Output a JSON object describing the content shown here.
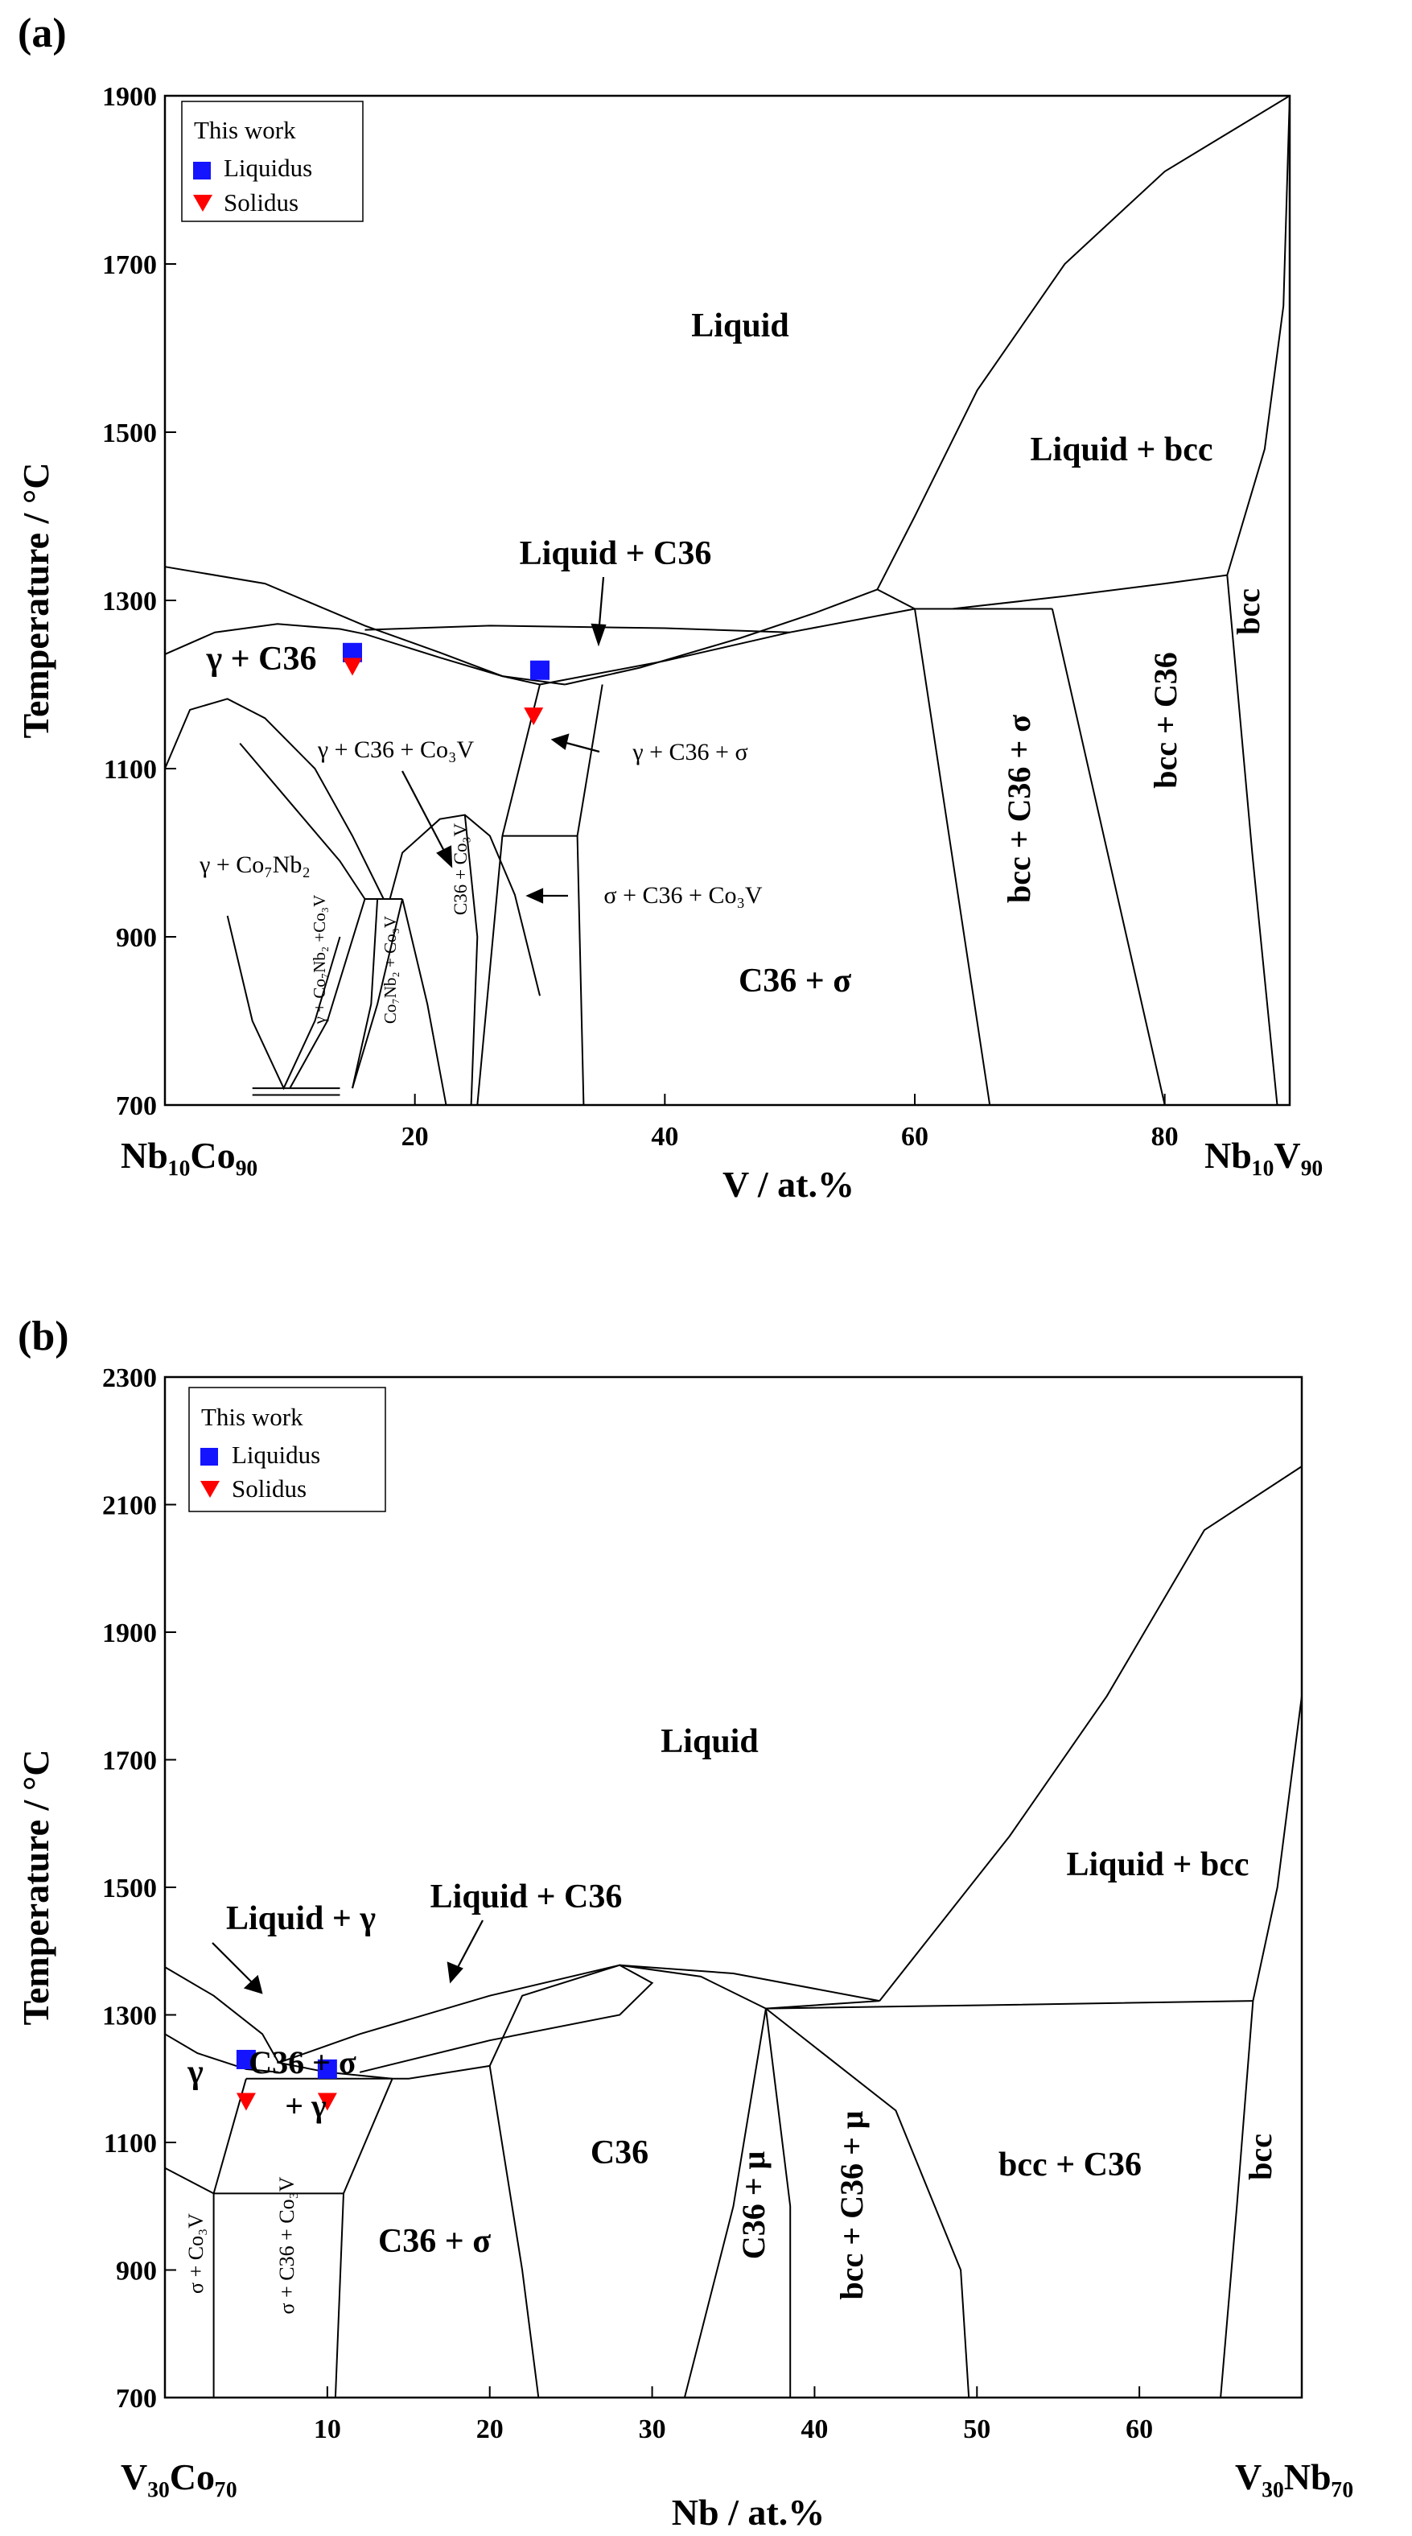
{
  "chart_data": [
    {
      "type": "phase-diagram",
      "panel_label": "(a)",
      "ylabel": "Temperature / °C",
      "xlabel": "V / at.%",
      "x_left_label": "Nb₁₀Co₉₀",
      "x_right_label": "Nb₁₀V₉₀",
      "xlim": [
        0,
        90
      ],
      "ylim": [
        700,
        1900
      ],
      "x_ticks": [
        20,
        40,
        60,
        80
      ],
      "y_ticks": [
        700,
        900,
        1100,
        1300,
        1500,
        1700,
        1900
      ],
      "legend": {
        "title": "This work",
        "entries": [
          {
            "label": "Liquidus",
            "marker": "square",
            "color": "#1414ff"
          },
          {
            "label": "Solidus",
            "marker": "triangle-down",
            "color": "#ff0000"
          }
        ]
      },
      "liquidus_points": [
        [
          15,
          1238
        ],
        [
          30,
          1217
        ]
      ],
      "solidus_points": [
        [
          15,
          1222
        ],
        [
          29.5,
          1163
        ]
      ],
      "region_labels": [
        "Liquid",
        "Liquid + bcc",
        "Liquid + C36",
        "γ + C36",
        "γ + C36 + Co₃V",
        "γ + C36 + σ",
        "γ + Co₇Nb₂",
        "σ + C36 + Co₃V",
        "C36 + σ",
        "bcc + C36 + σ",
        "bcc + C36",
        "bcc",
        "γ + Co₇Nb₂ +Co₃V",
        "Co₇Nb₂ + Co₃V",
        "C36 + Co₃V"
      ],
      "boundaries": [
        [
          [
            0,
            1340
          ],
          [
            8,
            1320
          ],
          [
            16,
            1270
          ],
          [
            22,
            1238
          ],
          [
            27,
            1210
          ],
          [
            32,
            1200
          ]
        ],
        [
          [
            0,
            1236
          ],
          [
            4,
            1262
          ],
          [
            9,
            1272
          ],
          [
            14,
            1266
          ],
          [
            16,
            1260
          ],
          [
            22,
            1232
          ],
          [
            27,
            1210
          ],
          [
            30,
            1200
          ]
        ],
        [
          [
            16,
            1265
          ],
          [
            26,
            1270
          ],
          [
            40,
            1267
          ],
          [
            50,
            1262
          ]
        ],
        [
          [
            32,
            1200
          ],
          [
            38,
            1220
          ],
          [
            46,
            1255
          ],
          [
            52,
            1285
          ],
          [
            57,
            1313
          ]
        ],
        [
          [
            30,
            1200
          ],
          [
            40,
            1228
          ],
          [
            50,
            1262
          ],
          [
            60,
            1290
          ]
        ],
        [
          [
            57,
            1313
          ],
          [
            60,
            1290
          ]
        ],
        [
          [
            57,
            1313
          ],
          [
            60,
            1400
          ],
          [
            65,
            1550
          ],
          [
            72,
            1700
          ],
          [
            80,
            1810
          ],
          [
            90,
            1900
          ]
        ],
        [
          [
            60,
            1290
          ],
          [
            63,
            1290
          ],
          [
            71,
            1290
          ]
        ],
        [
          [
            63,
            1290
          ],
          [
            72,
            1305
          ],
          [
            80,
            1320
          ],
          [
            85,
            1330
          ]
        ],
        [
          [
            85,
            1330
          ],
          [
            88,
            1480
          ],
          [
            89.5,
            1650
          ],
          [
            90,
            1900
          ]
        ],
        [
          [
            60,
            1290
          ],
          [
            66,
            700
          ]
        ],
        [
          [
            71,
            1290
          ],
          [
            80,
            700
          ]
        ],
        [
          [
            85,
            1330
          ],
          [
            87,
            1000
          ],
          [
            89,
            700
          ]
        ],
        [
          [
            0,
            1100
          ],
          [
            2,
            1170
          ],
          [
            5,
            1183
          ],
          [
            8,
            1160
          ],
          [
            12,
            1100
          ],
          [
            15,
            1020
          ],
          [
            17.5,
            945
          ]
        ],
        [
          [
            6,
            1130
          ],
          [
            10,
            1060
          ],
          [
            14,
            990
          ],
          [
            16,
            945
          ]
        ],
        [
          [
            16,
            945
          ],
          [
            19,
            945
          ]
        ],
        [
          [
            16,
            945
          ],
          [
            13,
            800
          ],
          [
            10,
            720
          ]
        ],
        [
          [
            19,
            945
          ],
          [
            17,
            820
          ],
          [
            15,
            720
          ]
        ],
        [
          [
            17,
            945
          ],
          [
            16.5,
            820
          ],
          [
            15,
            720
          ]
        ],
        [
          [
            18,
            945
          ],
          [
            19,
            1000
          ],
          [
            22,
            1040
          ],
          [
            24,
            1045
          ],
          [
            26,
            1020
          ],
          [
            28,
            950
          ],
          [
            30,
            830
          ]
        ],
        [
          [
            24,
            1045
          ],
          [
            25,
            900
          ],
          [
            24.5,
            700
          ]
        ],
        [
          [
            19,
            945
          ],
          [
            21,
            820
          ],
          [
            22.5,
            700
          ]
        ],
        [
          [
            5,
            925
          ],
          [
            7,
            800
          ],
          [
            9.5,
            720
          ],
          [
            12,
            800
          ],
          [
            14,
            900
          ]
        ],
        [
          [
            7,
            720
          ],
          [
            14,
            720
          ]
        ],
        [
          [
            7,
            712
          ],
          [
            14,
            712
          ]
        ],
        [
          [
            30,
            1200
          ],
          [
            27,
            1020
          ]
        ],
        [
          [
            35,
            1200
          ],
          [
            33,
            1020
          ]
        ],
        [
          [
            27,
            1020
          ],
          [
            33,
            1020
          ]
        ],
        [
          [
            27,
            1020
          ],
          [
            25,
            700
          ]
        ],
        [
          [
            33,
            1020
          ],
          [
            33.5,
            700
          ]
        ]
      ]
    },
    {
      "type": "phase-diagram",
      "panel_label": "(b)",
      "ylabel": "Temperature / °C",
      "xlabel": "Nb / at.%",
      "x_left_label": "V₃₀Co₇₀",
      "x_right_label": "V₃₀Nb₇₀",
      "xlim": [
        0,
        70
      ],
      "ylim": [
        700,
        2300
      ],
      "x_ticks": [
        10,
        20,
        30,
        40,
        50,
        60
      ],
      "y_ticks": [
        700,
        900,
        1100,
        1300,
        1500,
        1700,
        1900,
        2100,
        2300
      ],
      "legend": {
        "title": "This work",
        "entries": [
          {
            "label": "Liquidus",
            "marker": "square",
            "color": "#1414ff"
          },
          {
            "label": "Solidus",
            "marker": "triangle-down",
            "color": "#ff0000"
          }
        ]
      },
      "liquidus_points": [
        [
          5,
          1230
        ],
        [
          10,
          1215
        ]
      ],
      "solidus_points": [
        [
          5,
          1165
        ],
        [
          10,
          1165
        ]
      ],
      "region_labels": [
        "Liquid",
        "Liquid + bcc",
        "Liquid + γ",
        "Liquid + C36",
        "γ",
        "C36 + σ + γ",
        "C36",
        "C36 + σ",
        "σ + Co₃V",
        "σ + C36 + Co₃V",
        "C36 + μ",
        "bcc + C36 + μ",
        "bcc + C36",
        "bcc"
      ],
      "boundaries": [
        [
          [
            0,
            1375
          ],
          [
            3,
            1330
          ],
          [
            6,
            1270
          ],
          [
            7,
            1225
          ]
        ],
        [
          [
            0,
            1270
          ],
          [
            2,
            1240
          ],
          [
            5,
            1215
          ],
          [
            7,
            1210
          ]
        ],
        [
          [
            7,
            1225
          ],
          [
            10,
            1210
          ],
          [
            14,
            1200
          ]
        ],
        [
          [
            7,
            1225
          ],
          [
            12,
            1270
          ],
          [
            20,
            1330
          ],
          [
            28,
            1378
          ],
          [
            35,
            1365
          ],
          [
            44,
            1322
          ]
        ],
        [
          [
            12,
            1210
          ],
          [
            20,
            1260
          ],
          [
            28,
            1300
          ],
          [
            30,
            1350
          ],
          [
            28,
            1378
          ]
        ],
        [
          [
            5,
            1200
          ],
          [
            15,
            1200
          ],
          [
            20,
            1220
          ]
        ],
        [
          [
            20,
            1220
          ],
          [
            22,
            1330
          ],
          [
            28,
            1378
          ],
          [
            33,
            1360
          ],
          [
            37,
            1310
          ]
        ],
        [
          [
            37,
            1310
          ],
          [
            44,
            1322
          ]
        ],
        [
          [
            37,
            1310
          ],
          [
            50,
            1315
          ],
          [
            67,
            1322
          ]
        ],
        [
          [
            44,
            1322
          ],
          [
            52,
            1580
          ],
          [
            58,
            1800
          ],
          [
            64,
            2060
          ],
          [
            70,
            2160
          ]
        ],
        [
          [
            67,
            1322
          ],
          [
            68.5,
            1500
          ],
          [
            70,
            1800
          ],
          [
            70,
            2160
          ]
        ],
        [
          [
            37,
            1310
          ],
          [
            35,
            1000
          ],
          [
            32,
            700
          ]
        ],
        [
          [
            37,
            1310
          ],
          [
            38.5,
            1000
          ],
          [
            38.5,
            700
          ]
        ],
        [
          [
            37,
            1310
          ],
          [
            45,
            1150
          ],
          [
            49,
            900
          ],
          [
            49.5,
            700
          ]
        ],
        [
          [
            67,
            1322
          ],
          [
            66,
            1000
          ],
          [
            65,
            700
          ]
        ],
        [
          [
            20,
            1220
          ],
          [
            22,
            900
          ],
          [
            23,
            700
          ]
        ],
        [
          [
            5,
            1200
          ],
          [
            3,
            1020
          ]
        ],
        [
          [
            14,
            1200
          ],
          [
            11,
            1020
          ]
        ],
        [
          [
            3,
            1020
          ],
          [
            11,
            1020
          ]
        ],
        [
          [
            0,
            1060
          ],
          [
            3,
            1020
          ]
        ],
        [
          [
            3,
            1020
          ],
          [
            3,
            700
          ]
        ],
        [
          [
            11,
            1020
          ],
          [
            10.5,
            700
          ]
        ]
      ]
    }
  ]
}
